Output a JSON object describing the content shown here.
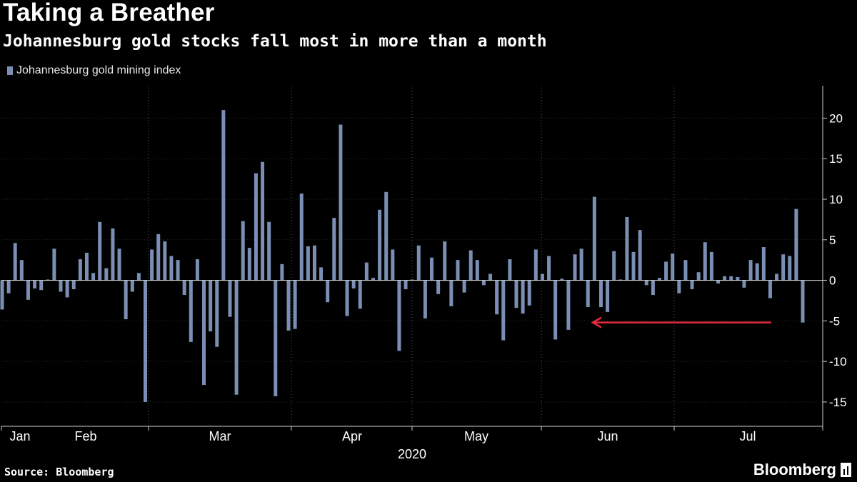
{
  "header": {
    "title": "Taking a Breather",
    "subtitle": "Johannesburg gold stocks fall most in more than a month"
  },
  "footer": {
    "source": "Source: Bloomberg",
    "brand": "Bloomberg"
  },
  "colors": {
    "background": "#000000",
    "bar": "#7a8fb3",
    "grid": "#5a5a5a",
    "axis": "#cfcfcf",
    "arrow": "#e8293c"
  },
  "chart_data": {
    "type": "bar",
    "title": "Taking a Breather",
    "subtitle": "Johannesburg gold stocks fall most in more than a month",
    "xlabel": "2020",
    "ylabel": "",
    "ylim": [
      -18,
      24
    ],
    "y_ticks": [
      -15,
      -10,
      -5,
      0,
      5,
      10,
      15,
      20
    ],
    "y_axis_side": "right",
    "grid": "vertical dotted at month boundaries",
    "legend": "top-left",
    "month_labels": [
      "Jan",
      "Feb",
      "Mar",
      "Apr",
      "May",
      "Jun",
      "Jul"
    ],
    "series": [
      {
        "name": "Johannesburg gold mining index",
        "values": [
          -3.6,
          -1.6,
          4.6,
          2.5,
          -2.4,
          -1.0,
          -1.2,
          0.1,
          3.9,
          -1.4,
          -2.1,
          -1.1,
          2.6,
          3.4,
          0.9,
          7.2,
          1.5,
          6.4,
          3.9,
          -4.8,
          -1.4,
          0.9,
          -15.0,
          3.8,
          5.7,
          4.8,
          3.0,
          2.5,
          -1.8,
          -7.6,
          2.6,
          -12.9,
          -6.3,
          -8.2,
          21.0,
          -4.5,
          -14.1,
          7.3,
          4.0,
          13.2,
          14.6,
          7.2,
          -14.3,
          2.0,
          -6.2,
          -6.0,
          10.7,
          4.2,
          4.3,
          1.6,
          -2.7,
          7.7,
          19.2,
          -4.4,
          -1.0,
          -3.5,
          2.2,
          0.3,
          8.7,
          10.9,
          3.8,
          -8.7,
          -1.1,
          0.1,
          4.3,
          -4.7,
          2.8,
          -1.7,
          4.8,
          -3.2,
          2.5,
          -1.5,
          3.7,
          2.5,
          -0.6,
          0.8,
          -4.2,
          -7.4,
          2.6,
          -3.4,
          -4.1,
          -3.1,
          3.8,
          0.8,
          3.0,
          -7.3,
          0.2,
          -6.1,
          3.2,
          3.9,
          -3.3,
          10.3,
          -3.3,
          -3.9,
          3.6,
          0.1,
          7.8,
          3.5,
          6.2,
          -0.6,
          -1.8,
          0.3,
          2.3,
          3.3,
          -1.6,
          2.5,
          -1.1,
          1.0,
          4.7,
          3.5,
          -0.4,
          0.5,
          0.5,
          0.4,
          -0.9,
          2.5,
          2.1,
          4.1,
          -2.2,
          0.8,
          3.2,
          3.0,
          8.8,
          -5.2
        ]
      }
    ],
    "annotations": [
      {
        "type": "arrow",
        "from_value": -5.2,
        "to_value": -5.2,
        "description": "arrow pointing left from latest bar to a prior drop of similar size"
      }
    ]
  }
}
